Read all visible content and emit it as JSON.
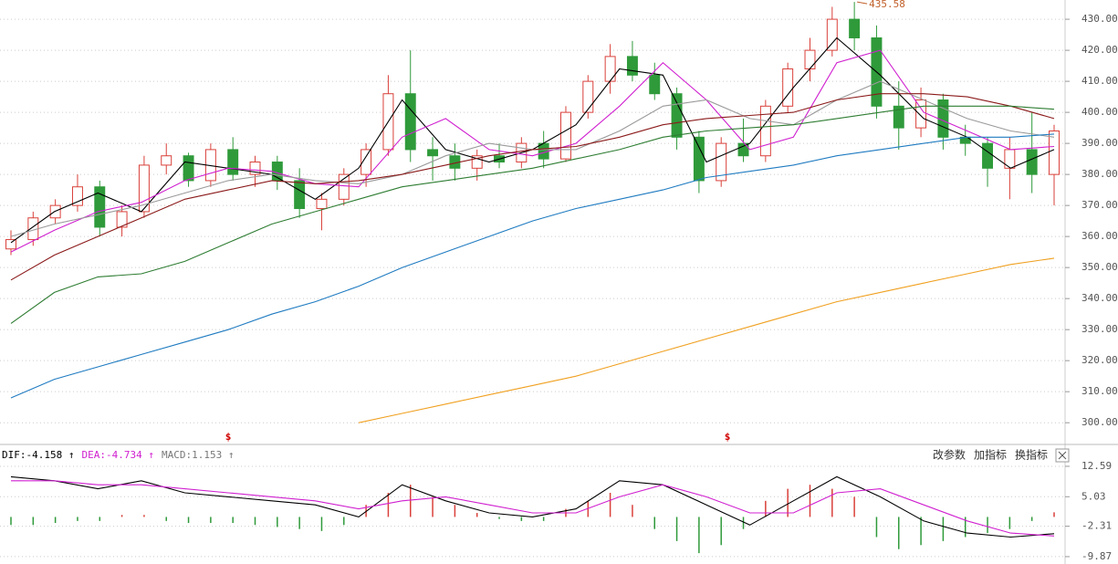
{
  "chart_data": [
    {
      "type": "candlestick",
      "open": [
        356,
        359,
        366,
        370,
        376,
        363,
        368,
        383,
        386,
        378,
        388,
        380,
        384,
        378,
        369,
        372,
        380,
        388,
        406,
        388,
        386,
        382,
        386,
        384,
        390,
        385,
        400,
        410,
        418,
        412,
        406,
        392,
        378,
        390,
        386,
        402,
        414,
        420,
        430,
        424,
        402,
        395,
        404,
        392,
        390,
        382,
        388,
        380
      ],
      "high": [
        362,
        368,
        372,
        380,
        378,
        370,
        386,
        390,
        387,
        390,
        392,
        386,
        386,
        382,
        374,
        382,
        390,
        412,
        420,
        392,
        390,
        388,
        390,
        392,
        394,
        402,
        412,
        422,
        423,
        416,
        408,
        394,
        392,
        398,
        404,
        416,
        424,
        434,
        435.58,
        428,
        410,
        408,
        406,
        396,
        392,
        392,
        400,
        396
      ],
      "low": [
        354,
        357,
        364,
        368,
        360,
        360,
        366,
        380,
        376,
        376,
        378,
        376,
        375,
        366,
        362,
        370,
        376,
        386,
        384,
        378,
        378,
        378,
        382,
        382,
        382,
        384,
        398,
        406,
        410,
        404,
        388,
        374,
        376,
        384,
        384,
        400,
        410,
        418,
        420,
        398,
        388,
        392,
        388,
        386,
        376,
        372,
        374,
        370
      ],
      "close": [
        359,
        366,
        370,
        376,
        363,
        368,
        383,
        386,
        378,
        388,
        380,
        384,
        378,
        369,
        372,
        380,
        388,
        406,
        388,
        386,
        382,
        386,
        384,
        390,
        385,
        400,
        410,
        418,
        412,
        406,
        392,
        378,
        390,
        386,
        402,
        414,
        420,
        430,
        424,
        402,
        395,
        404,
        392,
        390,
        382,
        388,
        380,
        394
      ],
      "up_color": "#d9403a",
      "down_color": "#2f9a3a",
      "ylim": [
        293,
        436.2
      ],
      "yticks": [
        {
          "value": 300,
          "label": "300.00"
        },
        {
          "value": 310,
          "label": "310.00"
        },
        {
          "value": 320,
          "label": "320.00"
        },
        {
          "value": 330,
          "label": "330.00"
        },
        {
          "value": 340,
          "label": "340.00"
        },
        {
          "value": 350,
          "label": "350.00"
        },
        {
          "value": 360,
          "label": "360.00"
        },
        {
          "value": 370,
          "label": "370.00"
        },
        {
          "value": 380,
          "label": "380.00"
        },
        {
          "value": 390,
          "label": "390.00"
        },
        {
          "value": 400,
          "label": "400.00"
        },
        {
          "value": 410,
          "label": "410.00"
        },
        {
          "value": 420,
          "label": "420.00"
        },
        {
          "value": 430,
          "label": "430.00"
        }
      ],
      "grid": true,
      "lines": [
        {
          "color": "#000000",
          "values": [
            358,
            368,
            374,
            368,
            384,
            382,
            380,
            372,
            382,
            404,
            388,
            384,
            388,
            396,
            414,
            412,
            384,
            390,
            408,
            424,
            412,
            398,
            392,
            382,
            388
          ]
        },
        {
          "color": "#d020d0",
          "values": [
            355,
            362,
            368,
            371,
            378,
            382,
            381,
            377,
            376,
            392,
            398,
            388,
            386,
            390,
            402,
            416,
            404,
            388,
            392,
            416,
            420,
            400,
            394,
            388,
            389
          ]
        },
        {
          "color": "#9a9a9a",
          "values": [
            360,
            364,
            367,
            370,
            374,
            378,
            380,
            378,
            377,
            380,
            386,
            390,
            388,
            388,
            394,
            402,
            404,
            398,
            396,
            404,
            410,
            404,
            398,
            394,
            392
          ]
        },
        {
          "color": "#8b1a1a",
          "values": [
            346,
            354,
            360,
            366,
            372,
            375,
            378,
            377,
            378,
            380,
            383,
            386,
            388,
            389,
            392,
            396,
            398,
            399,
            400,
            404,
            406,
            406,
            405,
            402,
            398
          ]
        },
        {
          "color": "#2e7d32",
          "values": [
            332,
            342,
            347,
            348,
            352,
            358,
            364,
            368,
            372,
            376,
            378,
            380,
            382,
            385,
            388,
            392,
            394,
            395,
            396,
            398,
            400,
            402,
            402,
            402,
            401
          ]
        },
        {
          "color": "#1f7bc1",
          "values": [
            308,
            314,
            318,
            322,
            326,
            330,
            335,
            339,
            344,
            350,
            355,
            360,
            365,
            369,
            372,
            375,
            379,
            381,
            383,
            386,
            388,
            390,
            392,
            392,
            393
          ]
        },
        {
          "color": "#f0a020",
          "values": [
            null,
            null,
            null,
            null,
            null,
            null,
            null,
            null,
            300,
            303,
            306,
            309,
            312,
            315,
            319,
            323,
            327,
            331,
            335,
            339,
            342,
            345,
            348,
            351,
            353
          ]
        }
      ],
      "signals": [
        "$",
        "$"
      ]
    },
    {
      "type": "macd",
      "series": [
        {
          "label": "DIF:-4.158 ↑",
          "color": "#000000",
          "values": [
            10,
            9,
            7,
            9,
            6,
            5,
            4,
            3,
            0,
            8,
            4,
            1,
            0,
            2,
            9,
            8,
            3,
            -2,
            4,
            10,
            5,
            -1,
            -4,
            -5,
            -4.158
          ]
        },
        {
          "label": "DEA:-4.734 ↑",
          "color": "#d020d0",
          "values": [
            9,
            9,
            8,
            8,
            7,
            6,
            5,
            4,
            2,
            4,
            5,
            3,
            1,
            1,
            5,
            8,
            5,
            1,
            1,
            6,
            7,
            3,
            -1,
            -4,
            -4.734
          ]
        }
      ],
      "histogram": {
        "label": "MACD:1.153 ↑",
        "color": "#777777",
        "up_color": "#d9403a",
        "down_color": "#2f9a3a",
        "values": [
          -2,
          -2,
          -1.5,
          -1,
          -1,
          0.5,
          0.5,
          -1,
          -1.5,
          -1.5,
          -1.5,
          -2,
          -2.5,
          -3,
          -3.5,
          -2,
          3,
          6,
          8,
          5,
          3,
          1,
          -0.5,
          -1,
          -1,
          2,
          4,
          6,
          3,
          -3,
          -6,
          -9,
          -7,
          -3,
          4,
          7,
          8,
          7,
          5,
          -5,
          -8,
          -7,
          -6,
          -5,
          -4,
          -3,
          -1,
          1.153
        ]
      },
      "ylim": [
        -11.7,
        17.8
      ],
      "yticks": [
        12.59,
        5.03,
        -2.31,
        -9.87
      ],
      "grid": true
    }
  ],
  "toolbar": [
    "改参数",
    "加指标",
    "换指标"
  ]
}
